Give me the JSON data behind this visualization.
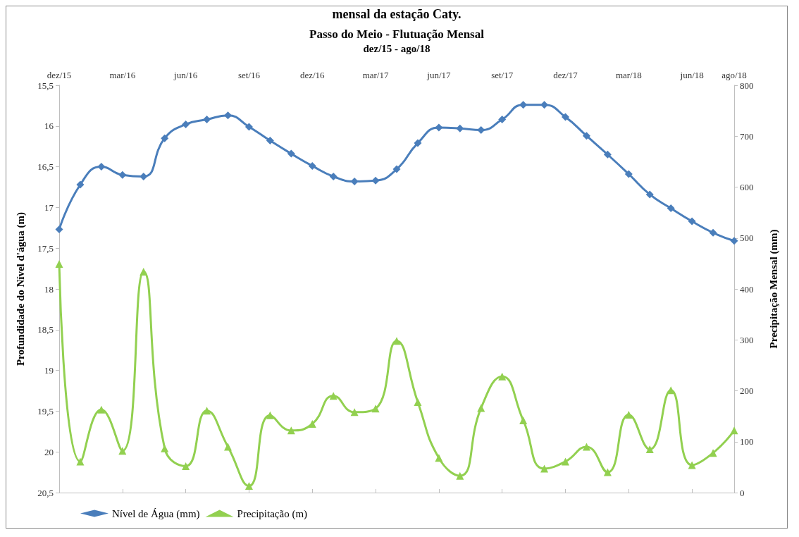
{
  "chart_data": {
    "type": "line",
    "title": "Passo do Meio - Flutuação Mensal",
    "subtitle": "dez/15 - ago/18",
    "annotations": [
      "mensal da estação Caty."
    ],
    "ylabel": "Profundidade do Nível d'água (m)",
    "y2label": "Precipitação Mensal (mm)",
    "x": [
      "2015-12",
      "2016-01",
      "2016-02",
      "2016-03",
      "2016-04",
      "2016-05",
      "2016-06",
      "2016-07",
      "2016-08",
      "2016-09",
      "2016-10",
      "2016-11",
      "2016-12",
      "2017-01",
      "2017-02",
      "2017-03",
      "2017-04",
      "2017-05",
      "2017-06",
      "2017-07",
      "2017-08",
      "2017-09",
      "2017-10",
      "2017-11",
      "2017-12",
      "2018-01",
      "2018-02",
      "2018-03",
      "2018-04",
      "2018-05",
      "2018-06",
      "2018-07",
      "2018-08"
    ],
    "xlim": [
      "2015-12",
      "2018-08"
    ],
    "xticks": [
      {
        "value": "2015-12",
        "label": "dez/15"
      },
      {
        "value": "2016-03",
        "label": "mar/16"
      },
      {
        "value": "2016-06",
        "label": "jun/16"
      },
      {
        "value": "2016-09",
        "label": "set/16"
      },
      {
        "value": "2016-12",
        "label": "dez/16"
      },
      {
        "value": "2017-03",
        "label": "mar/17"
      },
      {
        "value": "2017-06",
        "label": "jun/17"
      },
      {
        "value": "2017-09",
        "label": "set/17"
      },
      {
        "value": "2017-12",
        "label": "dez/17"
      },
      {
        "value": "2018-03",
        "label": "mar/18"
      },
      {
        "value": "2018-06",
        "label": "jun/18"
      },
      {
        "value": "2018-08",
        "label": "ago/18"
      }
    ],
    "ylim": [
      20.5,
      15.5
    ],
    "yticks": [
      {
        "value": 15.5,
        "label": "15,5"
      },
      16,
      {
        "value": 16.5,
        "label": "16,5"
      },
      17,
      {
        "value": 17.5,
        "label": "17,5"
      },
      18,
      {
        "value": 18.5,
        "label": "18,5"
      },
      19,
      {
        "value": 19.5,
        "label": "19,5"
      },
      20,
      {
        "value": 20.5,
        "label": "20,5"
      }
    ],
    "y2lim": [
      0,
      800
    ],
    "y2ticks": [
      0,
      100,
      200,
      300,
      400,
      500,
      600,
      700,
      800
    ],
    "grid": false,
    "legend": "bottom left",
    "series": [
      {
        "name": "Nível de Água (mm)",
        "color": "#4a7ebb",
        "marker": "diamond",
        "values": [
          17.27,
          16.72,
          16.5,
          16.6,
          16.62,
          16.15,
          15.98,
          15.92,
          15.87,
          16.01,
          16.18,
          16.34,
          16.49,
          16.62,
          16.68,
          16.67,
          16.53,
          16.21,
          16.02,
          16.03,
          16.05,
          15.92,
          15.74,
          15.74,
          15.89,
          16.12,
          16.35,
          16.59,
          16.84,
          17.01,
          17.17,
          17.31,
          17.41
        ]
      },
      {
        "name": "Precipitação (m)",
        "color": "#92d050",
        "marker": "triangle",
        "axis": "y2",
        "values": [
          449,
          61,
          163,
          82,
          434,
          87,
          52,
          161,
          90,
          13,
          152,
          122,
          135,
          190,
          158,
          165,
          298,
          178,
          68,
          33,
          166,
          228,
          142,
          47,
          61,
          90,
          40,
          153,
          85,
          201,
          54,
          78,
          122
        ]
      }
    ]
  }
}
